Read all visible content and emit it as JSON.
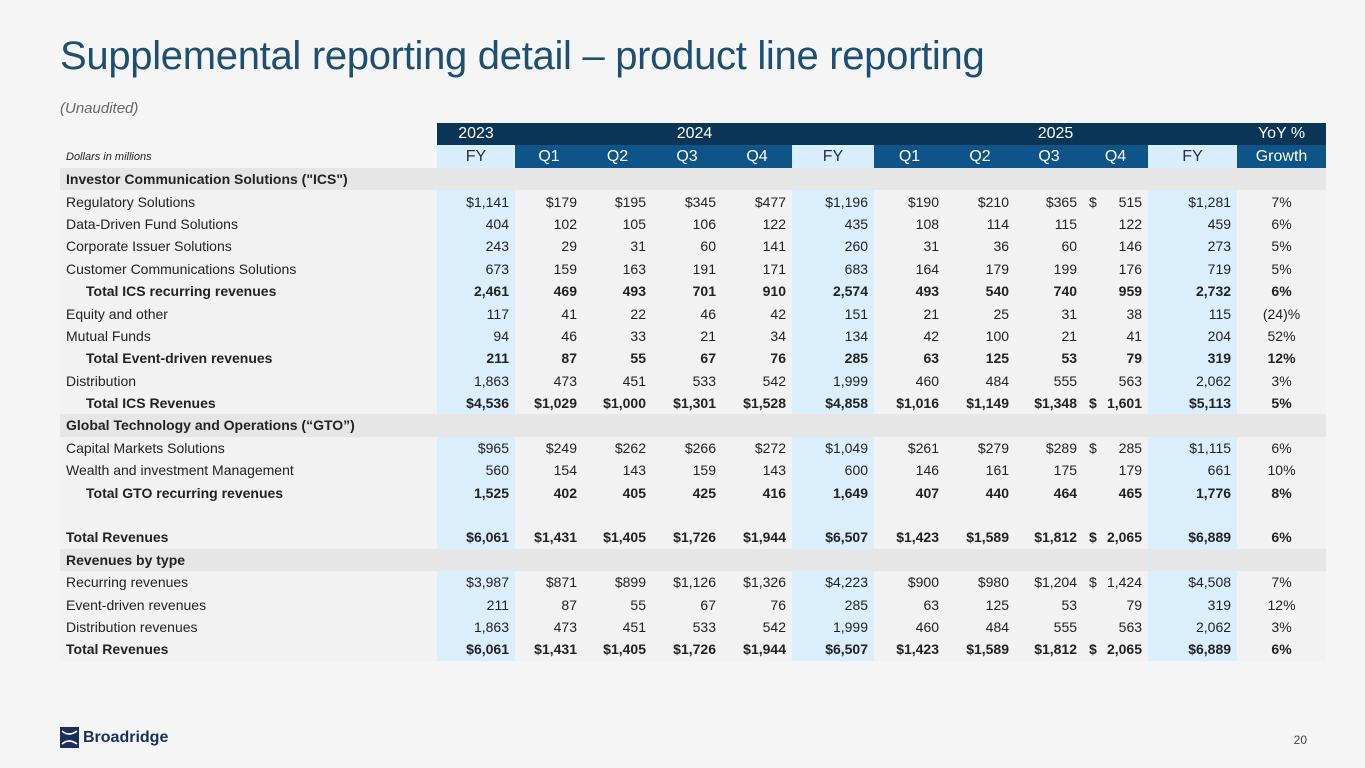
{
  "title": "Supplemental reporting detail – product line reporting",
  "subtitle": "(Unaudited)",
  "header": {
    "years": [
      "2023",
      "2024",
      "2025",
      "YoY %"
    ],
    "note": "Dollars in millions",
    "columns": [
      "FY",
      "Q1",
      "Q2",
      "Q3",
      "Q4",
      "FY",
      "Q1",
      "Q2",
      "Q3",
      "Q4",
      "FY",
      "Growth"
    ]
  },
  "rows": [
    {
      "type": "section",
      "label": "Investor Communication Solutions (\"ICS\")"
    },
    {
      "type": "data",
      "label": "Regulatory Solutions",
      "values": [
        "$1,141",
        "$179",
        "$195",
        "$345",
        "$477",
        "$1,196",
        "$190",
        "$210",
        "$365",
        "$ 515",
        "$1,281",
        "7%"
      ]
    },
    {
      "type": "data",
      "label": "Data-Driven Fund Solutions",
      "values": [
        "404",
        "102",
        "105",
        "106",
        "122",
        "435",
        "108",
        "114",
        "115",
        "122",
        "459",
        "6%"
      ]
    },
    {
      "type": "data",
      "label": "Corporate Issuer Solutions",
      "values": [
        "243",
        "29",
        "31",
        "60",
        "141",
        "260",
        "31",
        "36",
        "60",
        "146",
        "273",
        "5%"
      ]
    },
    {
      "type": "data",
      "label": "Customer Communications Solutions",
      "values": [
        "673",
        "159",
        "163",
        "191",
        "171",
        "683",
        "164",
        "179",
        "199",
        "176",
        "719",
        "5%"
      ]
    },
    {
      "type": "total",
      "label": "Total ICS recurring revenues",
      "values": [
        "2,461",
        "469",
        "493",
        "701",
        "910",
        "2,574",
        "493",
        "540",
        "740",
        "959",
        "2,732",
        "6%"
      ]
    },
    {
      "type": "data",
      "label": "Equity and other",
      "values": [
        "117",
        "41",
        "22",
        "46",
        "42",
        "151",
        "21",
        "25",
        "31",
        "38",
        "115",
        "(24)%"
      ]
    },
    {
      "type": "data",
      "label": "Mutual Funds",
      "values": [
        "94",
        "46",
        "33",
        "21",
        "34",
        "134",
        "42",
        "100",
        "21",
        "41",
        "204",
        "52%"
      ]
    },
    {
      "type": "total",
      "label": "Total Event-driven revenues",
      "values": [
        "211",
        "87",
        "55",
        "67",
        "76",
        "285",
        "63",
        "125",
        "53",
        "79",
        "319",
        "12%"
      ]
    },
    {
      "type": "data",
      "label": "Distribution",
      "values": [
        "1,863",
        "473",
        "451",
        "533",
        "542",
        "1,999",
        "460",
        "484",
        "555",
        "563",
        "2,062",
        "3%"
      ]
    },
    {
      "type": "total",
      "label": "Total ICS Revenues",
      "values": [
        "$4,536",
        "$1,029",
        "$1,000",
        "$1,301",
        "$1,528",
        "$4,858",
        "$1,016",
        "$1,149",
        "$1,348",
        "$ 1,601",
        "$5,113",
        "5%"
      ]
    },
    {
      "type": "section",
      "label": "Global Technology and Operations (“GTO”)"
    },
    {
      "type": "data",
      "label": "Capital Markets Solutions",
      "values": [
        "$965",
        "$249",
        "$262",
        "$266",
        "$272",
        "$1,049",
        "$261",
        "$279",
        "$289",
        "$ 285",
        "$1,115",
        "6%"
      ]
    },
    {
      "type": "data",
      "label": "Wealth and investment Management",
      "values": [
        "560",
        "154",
        "143",
        "159",
        "143",
        "600",
        "146",
        "161",
        "175",
        "179",
        "661",
        "10%"
      ]
    },
    {
      "type": "total",
      "label": "Total GTO recurring revenues",
      "values": [
        "1,525",
        "402",
        "405",
        "425",
        "416",
        "1,649",
        "407",
        "440",
        "464",
        "465",
        "1,776",
        "8%"
      ]
    },
    {
      "type": "blank",
      "label": ""
    },
    {
      "type": "grand",
      "label": "Total Revenues",
      "values": [
        "$6,061",
        "$1,431",
        "$1,405",
        "$1,726",
        "$1,944",
        "$6,507",
        "$1,423",
        "$1,589",
        "$1,812",
        "$ 2,065",
        "$6,889",
        "6%"
      ]
    },
    {
      "type": "section",
      "label": "Revenues by type"
    },
    {
      "type": "data",
      "label": "Recurring revenues",
      "values": [
        "$3,987",
        "$871",
        "$899",
        "$1,126",
        "$1,326",
        "$4,223",
        "$900",
        "$980",
        "$1,204",
        "$ 1,424",
        "$4,508",
        "7%"
      ]
    },
    {
      "type": "data",
      "label": "Event-driven revenues",
      "values": [
        "211",
        "87",
        "55",
        "67",
        "76",
        "285",
        "63",
        "125",
        "53",
        "79",
        "319",
        "12%"
      ]
    },
    {
      "type": "data",
      "label": "Distribution revenues",
      "values": [
        "1,863",
        "473",
        "451",
        "533",
        "542",
        "1,999",
        "460",
        "484",
        "555",
        "563",
        "2,062",
        "3%"
      ]
    },
    {
      "type": "grand",
      "label": "Total Revenues",
      "values": [
        "$6,061",
        "$1,431",
        "$1,405",
        "$1,726",
        "$1,944",
        "$6,507",
        "$1,423",
        "$1,589",
        "$1,812",
        "$ 2,065",
        "$6,889",
        "6%"
      ]
    }
  ],
  "footer": {
    "logo_text": "Broadridge",
    "page_number": "20"
  },
  "colors": {
    "title": "#1d4f73",
    "header_dark": "#0a3556",
    "header_mid": "#0e5488",
    "fy_fill": "#dbeefc",
    "section_fill": "#e6e6e6"
  }
}
